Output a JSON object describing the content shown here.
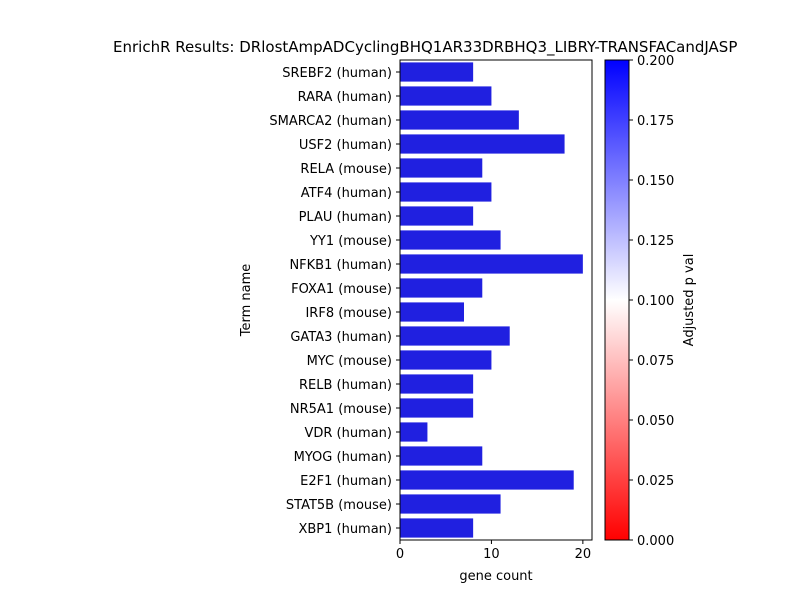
{
  "chart_data": {
    "type": "bar",
    "orientation": "horizontal",
    "title": "EnrichR Results: DRlostAmpADCyclingBHQ1AR33DRBHQ3_LIBRY-TRANSFACandJASP",
    "xlabel": "gene count",
    "ylabel": "Term name",
    "xlim": [
      0,
      21
    ],
    "xticks": [
      0,
      10,
      20
    ],
    "categories": [
      "SREBF2 (human)",
      "RARA (human)",
      "SMARCA2 (human)",
      "USF2 (human)",
      "RELA (mouse)",
      "ATF4 (human)",
      "PLAU (human)",
      "YY1 (mouse)",
      "NFKB1 (human)",
      "FOXA1 (mouse)",
      "IRF8 (mouse)",
      "GATA3 (human)",
      "MYC (mouse)",
      "RELB (human)",
      "NR5A1 (mouse)",
      "VDR (human)",
      "MYOG (human)",
      "E2F1 (human)",
      "STAT5B (mouse)",
      "XBP1 (human)"
    ],
    "values": [
      8,
      10,
      13,
      18,
      9,
      10,
      8,
      11,
      20,
      9,
      7,
      12,
      10,
      8,
      8,
      3,
      9,
      19,
      11,
      8
    ],
    "bar_color": "#2020e0",
    "colorbar": {
      "label": "Adjusted p val",
      "range": [
        0.0,
        0.2
      ],
      "ticks": [
        "0.000",
        "0.025",
        "0.050",
        "0.075",
        "0.100",
        "0.125",
        "0.150",
        "0.175",
        "0.200"
      ],
      "colors": [
        "#ff0000",
        "#ffffff",
        "#0000ff"
      ]
    }
  }
}
